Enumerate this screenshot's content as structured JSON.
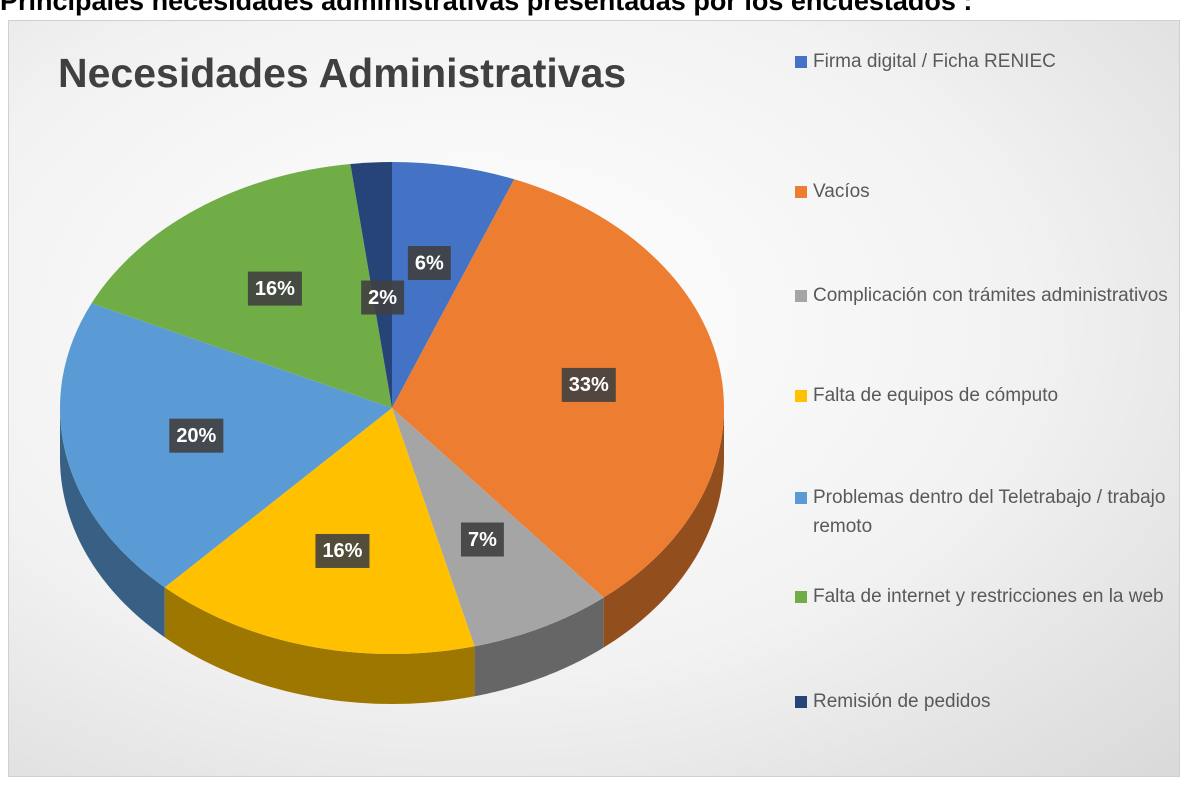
{
  "heading": "Principales necesidades administrativas presentadas por los encuestados :",
  "chart_data": {
    "type": "pie",
    "title": "Necesidades Administrativas",
    "categories": [
      "Firma digital / Ficha RENIEC",
      "Vacíos",
      "Complicación con trámites administrativos",
      "Falta de equipos de cómputo",
      "Problemas dentro del Teletrabajo / trabajo remoto",
      "Falta de internet y restricciones en la web",
      "Remisión de pedidos"
    ],
    "values": [
      6,
      33,
      7,
      16,
      20,
      16,
      2
    ],
    "value_labels": [
      "6%",
      "33%",
      "7%",
      "16%",
      "20%",
      "16%",
      "2%"
    ],
    "colors": [
      "#4472c4",
      "#ed7d31",
      "#a5a5a5",
      "#ffc000",
      "#5b9bd5",
      "#70ad47",
      "#264478"
    ],
    "legend": "right"
  }
}
